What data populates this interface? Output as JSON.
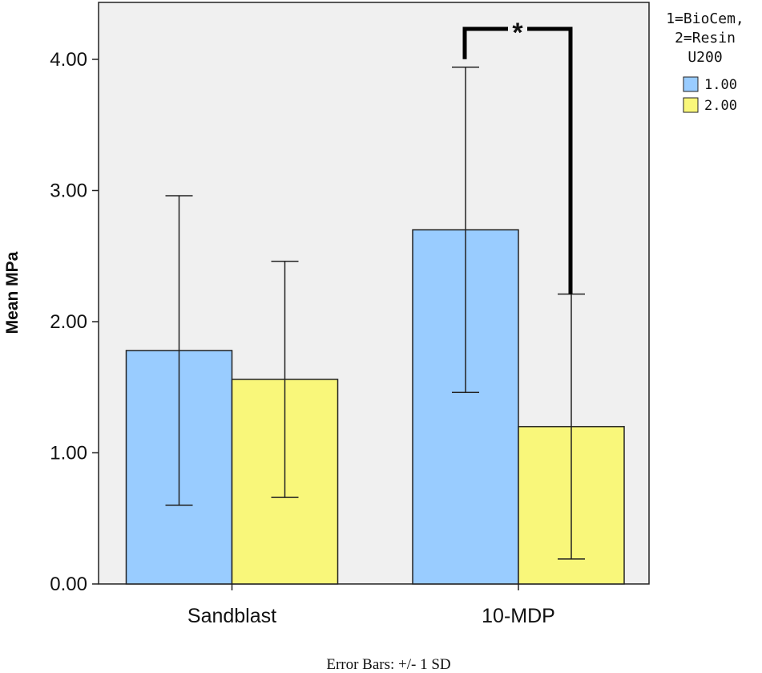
{
  "chart_data": {
    "type": "bar",
    "ylabel": "Mean MPa",
    "xlabel": "",
    "ylim": [
      0,
      4.35
    ],
    "yticks": [
      "0.00",
      "1.00",
      "2.00",
      "3.00",
      "4.00"
    ],
    "categories": [
      "Sandblast",
      "10-MDP"
    ],
    "legend": {
      "title_lines": [
        "1=BioCem,",
        "2=Resin",
        "U200"
      ],
      "placement": "right"
    },
    "series": [
      {
        "name": "1.00",
        "color": "#99ccff",
        "values": [
          1.78,
          2.7
        ],
        "sd": [
          1.18,
          1.24
        ]
      },
      {
        "name": "2.00",
        "color": "#f9f77a",
        "values": [
          1.56,
          1.2
        ],
        "sd": [
          0.9,
          1.01
        ]
      }
    ],
    "significance": {
      "label": "*",
      "category": "10-MDP"
    },
    "footnote": "Error Bars: +/- 1 SD",
    "grid": false,
    "plot_background": "#f0f0f0"
  }
}
